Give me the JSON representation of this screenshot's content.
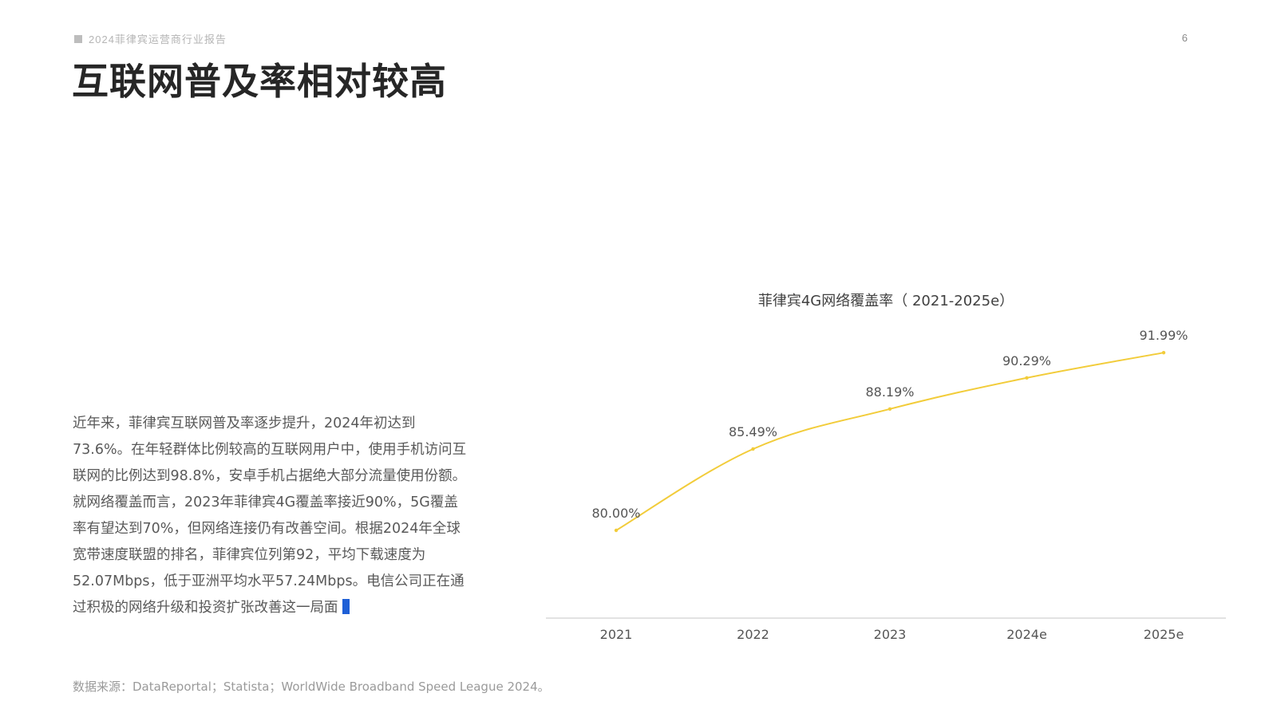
{
  "header": {
    "report_tag": "2024菲律宾运营商行业报告",
    "page_number": "6"
  },
  "page_title": "互联网普及率相对较高",
  "body": {
    "paragraph1": "近年来，菲律宾互联网普及率逐步提升，2024年初达到73.6%。在年轻群体比例较高的互联网用户中，使用手机访问互联网的比例达到98.8%，安卓手机占据绝大部分流量使用份额。",
    "paragraph2": "就网络覆盖而言，2023年菲律宾4G覆盖率接近90%，5G覆盖率有望达到70%，但网络连接仍有改善空间。根据2024年全球宽带速度联盟的排名，菲律宾位列第92，平均下载速度为52.07Mbps，低于亚洲平均水平57.24Mbps。电信公司正在通过积极的网络升级和投资扩张改善这一局面"
  },
  "source": "数据来源：DataReportal；Statista；WorldWide Broadband Speed League 2024。",
  "colors": {
    "line": "#f2cc3a",
    "axis": "#d9d9d9",
    "cursor": "#1e5fd6"
  },
  "chart_data": {
    "type": "line",
    "title": "菲律宾4G网络覆盖率（ 2021-2025e）",
    "categories": [
      "2021",
      "2022",
      "2023",
      "2024e",
      "2025e"
    ],
    "series": [
      {
        "values": [
          80.0,
          85.49,
          88.19,
          90.29,
          91.99
        ],
        "labels": [
          "80.00%",
          "85.49%",
          "88.19%",
          "90.29%",
          "91.99%"
        ]
      }
    ],
    "xlabel": "",
    "ylabel": "",
    "y_axis_visible": false,
    "grid": false,
    "legend": "none"
  }
}
